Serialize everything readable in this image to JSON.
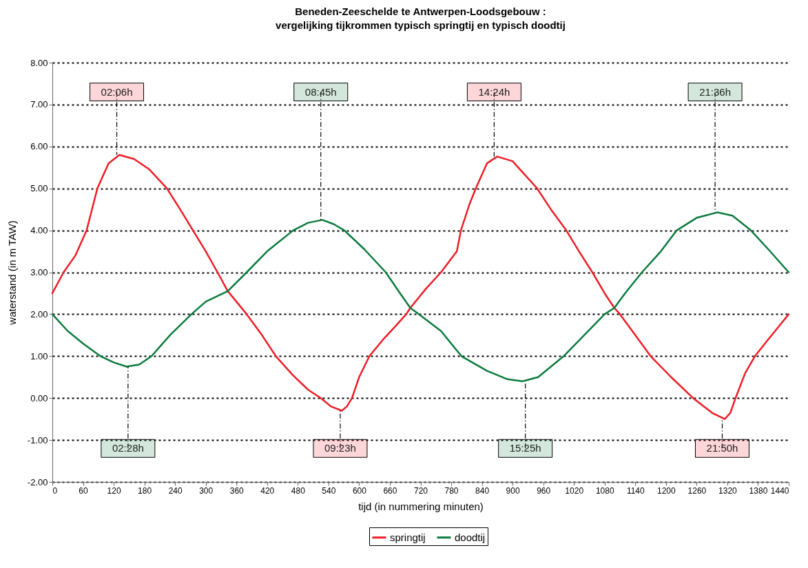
{
  "chart_data": {
    "type": "line",
    "title": "Beneden-Zeeschelde te Antwerpen-Loodsgebouw :\nvergelijking tijkrommen typisch springtij en typisch doodtij",
    "xlabel": "tijd   (in nummering minuten)",
    "ylabel": "waterstand    (in m TAW)",
    "series": [
      {
        "name": "springtij",
        "color": "#ee1c25",
        "x": [
          0,
          22,
          45,
          67,
          88,
          110,
          131,
          160,
          190,
          224,
          250,
          275,
          300,
          323,
          343,
          360,
          380,
          410,
          437,
          470,
          500,
          525,
          545,
          566,
          576,
          586,
          600,
          620,
          647,
          670,
          692,
          700,
          730,
          760,
          791,
          799,
          815,
          828,
          850,
          870,
          900,
          948,
          975,
          1005,
          1030,
          1056,
          1080,
          1099,
          1110,
          1140,
          1170,
          1210,
          1253,
          1290,
          1315,
          1326,
          1336,
          1355,
          1374,
          1400,
          1420,
          1440
        ],
        "values": [
          2.5,
          3.0,
          3.4,
          4.0,
          5.0,
          5.6,
          5.8,
          5.7,
          5.45,
          5.0,
          4.5,
          4.0,
          3.5,
          3.0,
          2.55,
          2.3,
          2.0,
          1.5,
          1.0,
          0.55,
          0.2,
          0.0,
          -0.2,
          -0.3,
          -0.2,
          0.0,
          0.5,
          1.0,
          1.4,
          1.7,
          2.0,
          2.15,
          2.6,
          3.0,
          3.5,
          4.0,
          4.6,
          5.0,
          5.6,
          5.76,
          5.65,
          5.0,
          4.5,
          4.0,
          3.5,
          3.0,
          2.5,
          2.15,
          2.0,
          1.5,
          1.0,
          0.5,
          0.0,
          -0.35,
          -0.5,
          -0.35,
          0.0,
          0.6,
          1.0,
          1.4,
          1.7,
          2.0
        ]
      },
      {
        "name": "doodtij",
        "color": "#0a7a3c",
        "x": [
          0,
          30,
          60,
          94,
          120,
          145,
          170,
          194,
          230,
          272,
          300,
          343,
          380,
          420,
          471,
          500,
          528,
          550,
          571,
          610,
          652,
          680,
          700,
          717,
          760,
          800,
          850,
          890,
          919,
          950,
          1000,
          1040,
          1080,
          1099,
          1120,
          1153,
          1190,
          1221,
          1260,
          1301,
          1330,
          1366,
          1400,
          1440
        ],
        "values": [
          2.0,
          1.6,
          1.3,
          1.0,
          0.85,
          0.75,
          0.8,
          1.0,
          1.5,
          2.0,
          2.3,
          2.55,
          3.0,
          3.5,
          4.0,
          4.18,
          4.25,
          4.15,
          4.0,
          3.55,
          3.0,
          2.5,
          2.15,
          2.0,
          1.6,
          1.0,
          0.65,
          0.45,
          0.4,
          0.5,
          1.0,
          1.5,
          2.0,
          2.15,
          2.5,
          3.0,
          3.5,
          4.0,
          4.3,
          4.43,
          4.35,
          4.0,
          3.55,
          3.0
        ]
      }
    ],
    "xlim": [
      0,
      1440
    ],
    "xticks": [
      0,
      60,
      120,
      180,
      240,
      300,
      360,
      420,
      480,
      540,
      600,
      660,
      720,
      780,
      840,
      900,
      960,
      1020,
      1080,
      1140,
      1200,
      1260,
      1320,
      1380,
      1440
    ],
    "ylim": [
      -2,
      8
    ],
    "yticks": [
      {
        "value": -2,
        "label": "-2.00"
      },
      {
        "value": -1,
        "label": "-1.00"
      },
      {
        "value": 0,
        "label": "0.00"
      },
      {
        "value": 1,
        "label": "1.00"
      },
      {
        "value": 2,
        "label": "2.00"
      },
      {
        "value": 3,
        "label": "3.00"
      },
      {
        "value": 4,
        "label": "4.00"
      },
      {
        "value": 5,
        "label": "5.00"
      },
      {
        "value": 6,
        "label": "6.00"
      },
      {
        "value": 7,
        "label": "7.00"
      },
      {
        "value": 8,
        "label": "8.00"
      }
    ],
    "grid": "y",
    "legend": "bottom",
    "marker": "none",
    "line_style": "solid",
    "annotations": [
      {
        "text": "02:06h",
        "x": 126,
        "y": 5.8
      },
      {
        "text": "08:45h",
        "x": 525,
        "y": 4.25
      },
      {
        "text": "14:24h",
        "x": 864,
        "y": 5.76
      },
      {
        "text": "21:36h",
        "x": 1296,
        "y": 4.43
      },
      {
        "text": "02:28h",
        "x": 148,
        "y": 0.75
      },
      {
        "text": "09:23h",
        "x": 563,
        "y": -0.3
      },
      {
        "text": "15:25h",
        "x": 925,
        "y": 0.4
      },
      {
        "text": "21:50h",
        "x": 1310,
        "y": -0.5
      }
    ]
  }
}
